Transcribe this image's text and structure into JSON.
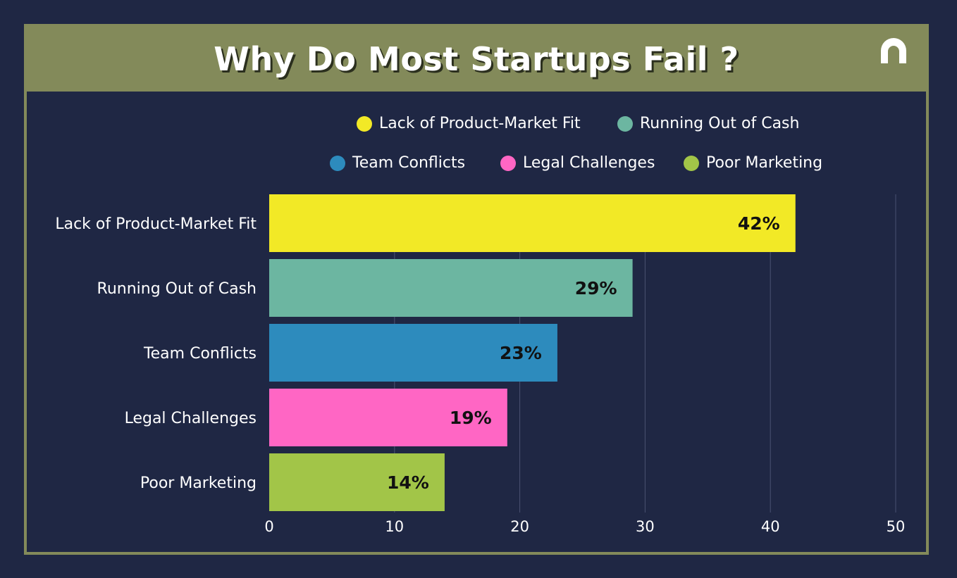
{
  "title": "Why Do Most Startups Fail ?",
  "chart_data": {
    "type": "bar",
    "orientation": "horizontal",
    "title": "Why Do Most Startups Fail ?",
    "categories": [
      "Lack of Product-Market Fit",
      "Running Out of Cash",
      "Team Conflicts",
      "Legal Challenges",
      "Poor Marketing"
    ],
    "values": [
      42,
      29,
      23,
      19,
      14
    ],
    "value_labels": [
      "42%",
      "29%",
      "23%",
      "19%",
      "14%"
    ],
    "colors": [
      "#f2e926",
      "#6cb6a1",
      "#2d8bbd",
      "#ff66c4",
      "#a2c548"
    ],
    "xlim": [
      0,
      50
    ],
    "xticks": [
      0,
      10,
      20,
      30,
      40,
      50
    ],
    "xtick_labels": [
      "0",
      "10",
      "20",
      "30",
      "40",
      "50"
    ],
    "grid": true,
    "legend": [
      {
        "label": "Lack of Product-Market Fit",
        "color": "#f2e926"
      },
      {
        "label": "Running Out of Cash",
        "color": "#6cb6a1"
      },
      {
        "label": "Team Conflicts",
        "color": "#2d8bbd"
      },
      {
        "label": "Legal Challenges",
        "color": "#ff66c4"
      },
      {
        "label": "Poor Marketing",
        "color": "#a2c548"
      }
    ],
    "legend_position": "top"
  },
  "colors": {
    "background": "#1f2744",
    "accent": "#838a5a",
    "text": "#ffffff"
  },
  "logo": {
    "icon": "arch-logo-icon"
  }
}
